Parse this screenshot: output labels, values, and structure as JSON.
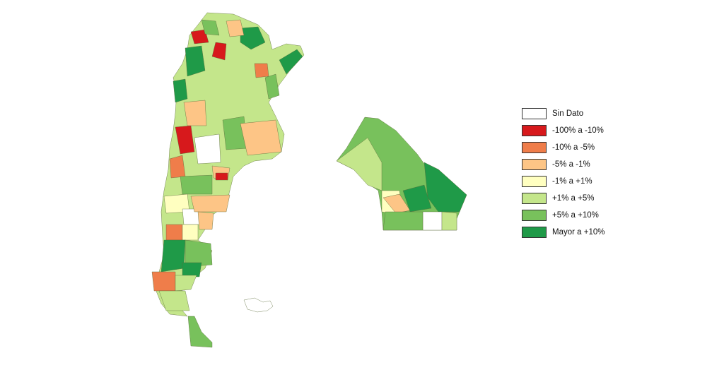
{
  "legend": {
    "items": [
      {
        "label": "Sin Dato",
        "color": "#ffffff"
      },
      {
        "label": "-100% a -10%",
        "color": "#d7191c"
      },
      {
        "label": "-10% a -5%",
        "color": "#ef7d4a"
      },
      {
        "label": "-5% a -1%",
        "color": "#fdc586"
      },
      {
        "label": "-1% a +1%",
        "color": "#ffffc0"
      },
      {
        "label": "+1% a +5%",
        "color": "#c4e68b"
      },
      {
        "label": "+5% a +10%",
        "color": "#78c15c"
      },
      {
        "label": "Mayor a +10%",
        "color": "#1f9a48"
      }
    ]
  }
}
